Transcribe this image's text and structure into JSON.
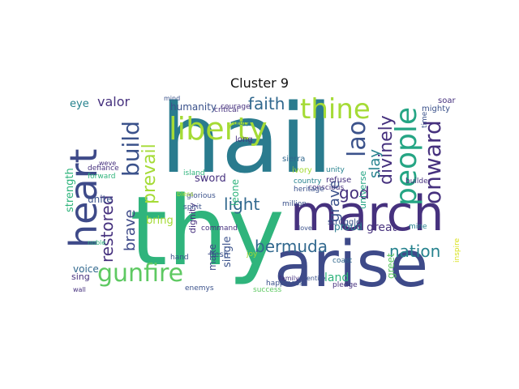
{
  "title": "Cluster 9",
  "words": {
    "hail": "hail",
    "thy": "thy",
    "arise": "arise",
    "march": "march",
    "heart": "heart",
    "liberty": "liberty",
    "people": "people",
    "thine": "thine",
    "gunfire": "gunfire",
    "build": "build",
    "onward": "onward",
    "faith": "faith",
    "lao": "lao",
    "divinely": "divinely",
    "bermuda": "bermuda",
    "nation": "nation",
    "prevail": "prevail",
    "restored": "restored",
    "brave": "brave",
    "god": "god",
    "light": "light",
    "grave": "grave",
    "slay": "slay",
    "valor": "valor",
    "strength": "strength",
    "humanity": "humanity",
    "sword": "sword",
    "land": "land",
    "great": "great",
    "greet": "greet",
    "proud": "proud",
    "dignity": "dignity",
    "bring": "bring",
    "single": "single",
    "make": "make",
    "voice": "voice",
    "sing": "sing",
    "unite": "unite",
    "eye": "eye",
    "leone": "leone",
    "universe": "universe",
    "defiance": "defiance",
    "struggle": "struggle",
    "refuse": "refuse",
    "unity": "unity",
    "ivory": "ivory",
    "sierra": "sierra",
    "courage": "courage",
    "mighty": "mighty",
    "soar": "soar",
    "coast": "coast",
    "pledge": "pledge",
    "happiness": "happiness",
    "success": "success",
    "mine": "mine",
    "builder": "builder",
    "million": "million",
    "conscious": "conscious",
    "heritage": "heritage",
    "country": "country",
    "flesh": "flesh",
    "joy": "joy",
    "long": "long",
    "love": "love",
    "family": "family",
    "glorious": "glorious",
    "command": "command",
    "spirit": "spirit",
    "island": "island",
    "hand": "hand",
    "bless": "bless",
    "forward": "forward",
    "wall": "wall",
    "enemys": "enemys",
    "critical": "critical",
    "mind": "mind",
    "entire": "entire",
    "time": "time",
    "weve": "weve",
    "inspire": "inspire",
    "glory": "glory",
    "noble": "noble"
  },
  "palette": {
    "teal": "#2a7b8e",
    "green": "#2fb47c",
    "indigo": "#3e4a89",
    "lime": "#a5db36",
    "purple": "#46317e",
    "seagreen": "#25a584",
    "navy": "#3b528b",
    "lightgreen": "#5ec962",
    "yellow": "#d8e219",
    "blue": "#31688e",
    "cyan": "#26828e",
    "darkpurple": "#440154"
  }
}
